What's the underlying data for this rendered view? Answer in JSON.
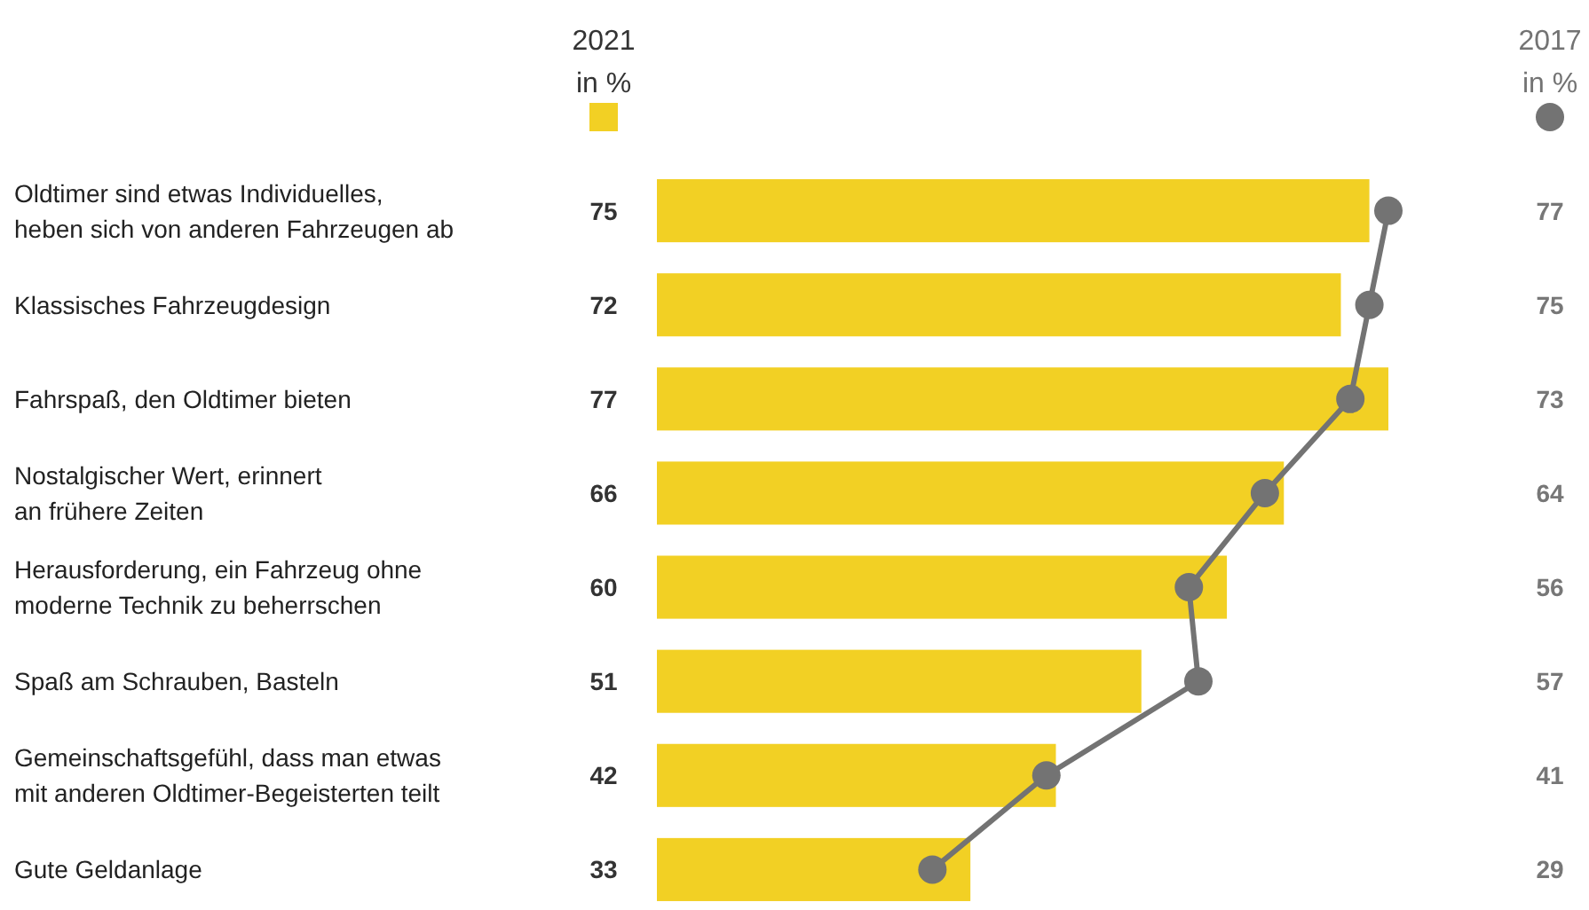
{
  "chart_data": {
    "type": "bar",
    "orientation": "horizontal",
    "categories": [
      "Oldtimer sind etwas Individuelles,\nheben sich von anderen Fahrzeugen ab",
      "Klassisches Fahrzeugdesign",
      "Fahrspaß, den Oldtimer bieten",
      "Nostalgischer Wert, erinnert\nan frühere Zeiten",
      "Herausforderung, ein Fahrzeug ohne\nmoderne Technik zu beherrschen",
      "Spaß am Schrauben, Basteln",
      "Gemeinschaftsgefühl, dass man etwas\nmit anderen Oldtimer-Begeisterten teilt",
      "Gute Geldanlage"
    ],
    "series": [
      {
        "name": "2021\nin %",
        "color": "#f2d024",
        "values": [
          75,
          72,
          77,
          66,
          60,
          51,
          42,
          33
        ],
        "value_labels": [
          "75",
          "72",
          "77",
          "66",
          "60",
          "51",
          "42",
          "33"
        ]
      },
      {
        "name": "2017\nin %",
        "type": "line",
        "color": "#737373",
        "marker": "circle",
        "values": [
          77,
          75,
          73,
          64,
          56,
          57,
          41,
          29
        ],
        "value_labels": [
          "77",
          "75",
          "73",
          "64",
          "56",
          "57",
          "41",
          "29"
        ]
      }
    ],
    "legend": "top"
  }
}
